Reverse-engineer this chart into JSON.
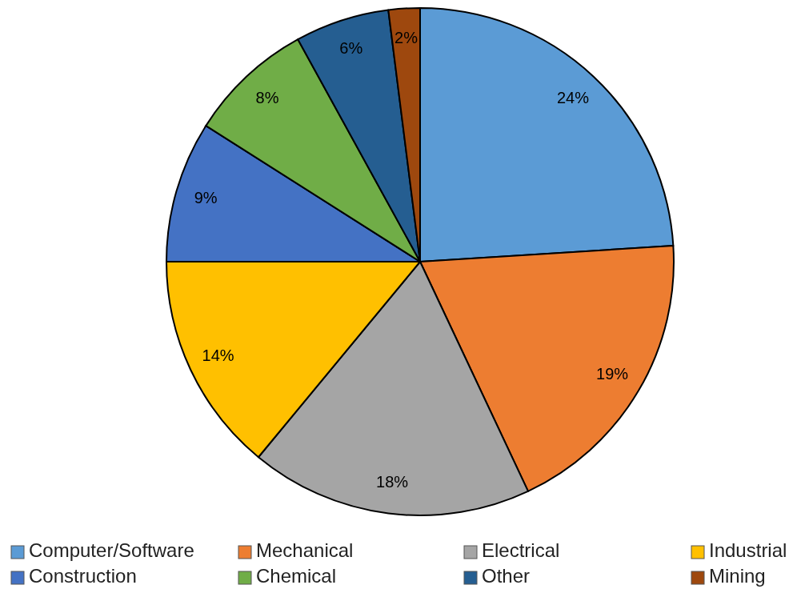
{
  "chart_data": {
    "type": "pie",
    "categories": [
      "Computer/Software",
      "Mechanical",
      "Electrical",
      "Industrial",
      "Construction",
      "Chemical",
      "Other",
      "Mining"
    ],
    "values": [
      24,
      19,
      18,
      14,
      9,
      8,
      6,
      2
    ],
    "colors": [
      "#5b9bd5",
      "#ed7d31",
      "#a5a5a5",
      "#ffc000",
      "#4472c4",
      "#70ad47",
      "#255e91",
      "#9e480e"
    ],
    "value_labels": [
      "24%",
      "19%",
      "18%",
      "14%",
      "9%",
      "8%",
      "6%",
      "2%"
    ],
    "legend": "bottom"
  }
}
